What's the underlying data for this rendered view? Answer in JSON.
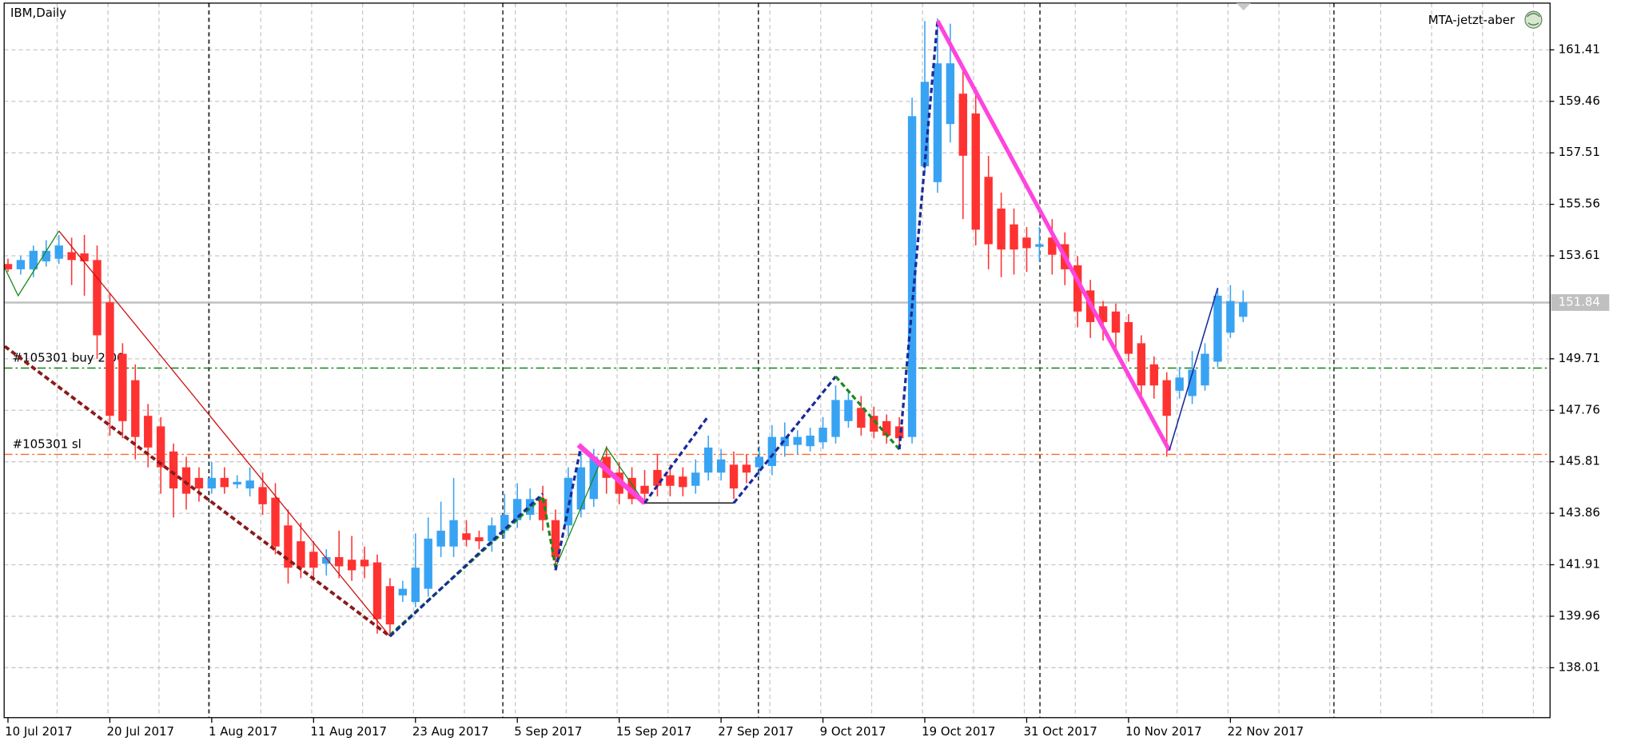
{
  "chart_data": {
    "type": "candlestick",
    "title": "IBM,Daily",
    "indicator": "MTA-jetzt-aber",
    "up_color": "#39a3f3",
    "down_color": "#ff3232",
    "grid": true,
    "categories": [
      "10 Jul 2017",
      null,
      null,
      null,
      null,
      null,
      null,
      null,
      "20 Jul 2017",
      null,
      null,
      null,
      null,
      null,
      null,
      null,
      "1 Aug 2017",
      null,
      null,
      null,
      null,
      null,
      null,
      null,
      "11 Aug 2017",
      null,
      null,
      null,
      null,
      null,
      null,
      null,
      "23 Aug 2017",
      null,
      null,
      null,
      null,
      null,
      null,
      null,
      "5 Sep 2017",
      null,
      null,
      null,
      null,
      null,
      null,
      null,
      "15 Sep 2017",
      null,
      null,
      null,
      null,
      null,
      null,
      null,
      "27 Sep 2017",
      null,
      null,
      null,
      null,
      null,
      null,
      null,
      "9 Oct 2017",
      null,
      null,
      null,
      null,
      null,
      null,
      null,
      "19 Oct 2017",
      null,
      null,
      null,
      null,
      null,
      null,
      null,
      "31 Oct 2017",
      null,
      null,
      null,
      null,
      null,
      null,
      null,
      "10 Nov 2017",
      null,
      null,
      null,
      null,
      null,
      null,
      null,
      "22 Nov 2017",
      null
    ],
    "open": [
      153.3,
      153.1,
      153.1,
      153.4,
      153.5,
      153.75,
      153.7,
      153.45,
      151.85,
      149.9,
      148.9,
      147.55,
      147.15,
      146.2,
      145.6,
      145.2,
      144.8,
      145.2,
      144.95,
      144.8,
      144.85,
      144.45,
      143.4,
      142.8,
      142.4,
      141.95,
      142.2,
      142.1,
      142.1,
      142.0,
      141.1,
      140.75,
      140.5,
      141.0,
      142.6,
      142.6,
      143.1,
      142.95,
      142.8,
      143.2,
      143.6,
      143.8,
      144.4,
      143.6,
      143.4,
      144.0,
      144.4,
      146.0,
      145.4,
      145.2,
      144.9,
      145.5,
      145.3,
      145.25,
      144.9,
      145.4,
      145.4,
      145.7,
      145.7,
      145.6,
      145.65,
      146.4,
      146.45,
      146.4,
      146.55,
      146.75,
      147.35,
      147.85,
      147.55,
      147.35,
      147.15,
      146.75,
      157.0,
      156.4,
      158.6,
      159.75,
      159.0,
      156.6,
      155.4,
      154.8,
      154.3,
      153.95,
      154.3,
      154.05,
      153.25,
      152.3,
      151.7,
      151.5,
      151.1,
      150.3,
      149.5,
      148.9,
      148.5,
      148.3,
      148.7,
      149.6,
      150.7,
      151.3
    ],
    "high": [
      153.5,
      153.6,
      154.0,
      154.2,
      154.4,
      154.3,
      154.4,
      154.0,
      152.2,
      150.3,
      149.5,
      148.0,
      147.5,
      146.5,
      146.0,
      145.6,
      145.8,
      145.6,
      145.3,
      145.6,
      145.4,
      145.0,
      144.0,
      143.5,
      142.8,
      142.5,
      143.2,
      143.0,
      142.6,
      142.3,
      141.4,
      141.3,
      143.1,
      143.7,
      144.3,
      145.2,
      143.6,
      143.2,
      143.7,
      144.6,
      145.0,
      144.8,
      144.9,
      144.0,
      145.6,
      146.2,
      146.3,
      146.4,
      145.8,
      145.6,
      145.5,
      146.1,
      145.7,
      145.6,
      145.9,
      146.8,
      146.3,
      146.2,
      146.1,
      146.4,
      147.2,
      147.3,
      147.0,
      147.1,
      147.5,
      148.7,
      148.5,
      148.3,
      147.9,
      147.6,
      147.5,
      159.6,
      162.5,
      162.6,
      162.4,
      160.8,
      160.0,
      157.4,
      156.0,
      155.4,
      154.7,
      154.7,
      155.0,
      154.5,
      153.6,
      152.7,
      151.9,
      151.8,
      151.4,
      150.6,
      149.8,
      149.2,
      149.4,
      150.0,
      150.3,
      152.4,
      152.5,
      152.3
    ],
    "low": [
      153.0,
      152.9,
      152.8,
      153.2,
      153.3,
      152.5,
      152.1,
      149.7,
      146.8,
      146.7,
      145.9,
      145.6,
      144.6,
      143.7,
      144.0,
      144.3,
      144.6,
      144.6,
      144.8,
      144.5,
      143.8,
      142.3,
      141.2,
      141.4,
      141.3,
      141.5,
      141.4,
      141.3,
      141.4,
      139.3,
      139.2,
      140.5,
      140.3,
      140.7,
      142.2,
      142.2,
      142.6,
      142.5,
      142.4,
      142.9,
      143.3,
      143.6,
      143.2,
      141.9,
      143.0,
      143.7,
      144.1,
      144.6,
      144.2,
      144.2,
      144.2,
      144.5,
      144.5,
      144.5,
      144.6,
      145.1,
      145.1,
      144.4,
      145.0,
      145.3,
      145.3,
      146.0,
      146.1,
      146.2,
      146.3,
      146.5,
      147.1,
      146.8,
      146.7,
      146.5,
      146.3,
      146.5,
      156.8,
      156.0,
      157.9,
      155.0,
      154.0,
      153.1,
      152.8,
      152.9,
      153.0,
      153.4,
      152.9,
      152.5,
      150.9,
      150.5,
      150.4,
      150.1,
      149.6,
      148.3,
      148.2,
      146.0,
      148.2,
      148.0,
      148.5,
      149.4,
      150.5,
      151.1
    ],
    "close": [
      153.1,
      153.45,
      153.8,
      153.8,
      154.0,
      153.45,
      153.4,
      150.6,
      147.55,
      147.35,
      146.75,
      146.35,
      145.6,
      144.8,
      144.6,
      144.8,
      145.2,
      144.85,
      145.05,
      145.1,
      144.2,
      142.6,
      141.8,
      141.8,
      141.8,
      142.2,
      141.85,
      141.7,
      141.85,
      139.85,
      139.65,
      141.0,
      141.8,
      142.9,
      143.2,
      143.6,
      142.85,
      142.8,
      143.4,
      143.8,
      144.4,
      144.4,
      143.6,
      142.2,
      145.2,
      145.6,
      146.0,
      145.2,
      144.6,
      144.4,
      144.6,
      144.9,
      144.9,
      144.85,
      145.4,
      146.35,
      145.9,
      144.8,
      145.4,
      146.0,
      146.75,
      146.75,
      146.75,
      146.8,
      147.1,
      148.15,
      148.15,
      147.1,
      146.95,
      146.8,
      146.7,
      158.9,
      160.2,
      160.9,
      160.9,
      157.4,
      154.6,
      154.05,
      153.85,
      153.85,
      153.9,
      154.05,
      153.65,
      153.1,
      151.5,
      151.1,
      151.1,
      150.7,
      149.9,
      148.7,
      148.7,
      147.55,
      149.0,
      149.3,
      149.9,
      152.1,
      151.9,
      151.85
    ],
    "xlim": [
      -0.3,
      121.1
    ],
    "ylim": [
      136.12,
      163.18
    ],
    "yticks": [
      138.01,
      139.96,
      141.91,
      143.86,
      145.81,
      147.76,
      149.71,
      153.61,
      155.56,
      157.51,
      159.46,
      161.41
    ],
    "current_price": 151.84,
    "current_price_color": "#c0c0c0",
    "orders": [
      {
        "label": "#105301 buy 2.00",
        "price": 149.36,
        "color": "#008000"
      },
      {
        "label": "#105301 sl",
        "price": 146.09,
        "color": "#ff6a2a"
      }
    ],
    "overlays": [
      {
        "color": "#8b1a1a",
        "width": 3,
        "dash": true,
        "points": [
          [
            -0.25,
            150.18
          ],
          [
            30,
            139.2
          ]
        ]
      },
      {
        "color": "#cc1111",
        "width": 1,
        "dash": false,
        "points": [
          [
            4,
            154.55
          ],
          [
            30,
            139.2
          ]
        ]
      },
      {
        "color": "#1a8a1a",
        "width": 1,
        "dash": false,
        "points": [
          [
            -0.3,
            153.2
          ],
          [
            0.8,
            152.1
          ],
          [
            4,
            154.55
          ]
        ]
      },
      {
        "color": "#1a8a1a",
        "width": 2.5,
        "dash": true,
        "points": [
          [
            30,
            139.25
          ],
          [
            42,
            144.5
          ],
          [
            43,
            141.8
          ]
        ]
      },
      {
        "color": "#1a2a99",
        "width": 2.5,
        "dash": true,
        "points": [
          [
            30,
            139.2
          ],
          [
            42,
            144.6
          ]
        ]
      },
      {
        "color": "#1a8a1a",
        "width": 1,
        "dash": false,
        "points": [
          [
            43,
            141.8
          ],
          [
            47,
            146.35
          ],
          [
            50,
            144.25
          ]
        ]
      },
      {
        "color": "#1a2a99",
        "width": 2.5,
        "dash": true,
        "points": [
          [
            43,
            141.7
          ],
          [
            45,
            146.4
          ]
        ]
      },
      {
        "color": "#ff44dd",
        "width": 5,
        "dash": false,
        "points": [
          [
            44.8,
            146.45
          ],
          [
            50,
            144.25
          ]
        ]
      },
      {
        "color": "#000000",
        "width": 1,
        "dash": false,
        "points": [
          [
            50,
            144.25
          ],
          [
            57,
            144.25
          ]
        ]
      },
      {
        "color": "#1a2a99",
        "width": 2.5,
        "dash": true,
        "points": [
          [
            50,
            144.25
          ],
          [
            55,
            147.54
          ]
        ]
      },
      {
        "color": "#1a2a99",
        "width": 2.5,
        "dash": true,
        "points": [
          [
            57,
            144.25
          ],
          [
            65,
            149.04
          ]
        ]
      },
      {
        "color": "#1a8a1a",
        "width": 2.5,
        "dash": true,
        "points": [
          [
            65,
            149.04
          ],
          [
            70,
            146.28
          ]
        ]
      },
      {
        "color": "#1a2a99",
        "width": 2.5,
        "dash": true,
        "points": [
          [
            70,
            146.28
          ],
          [
            73,
            162.51
          ]
        ]
      },
      {
        "color": "#ff44dd",
        "width": 4,
        "dash": false,
        "points": [
          [
            73,
            162.51
          ],
          [
            91.2,
            146.24
          ]
        ]
      },
      {
        "color": "#1a2a99",
        "width": 1.2,
        "dash": false,
        "points": [
          [
            91.2,
            146.24
          ],
          [
            95,
            152.39
          ]
        ]
      }
    ]
  }
}
